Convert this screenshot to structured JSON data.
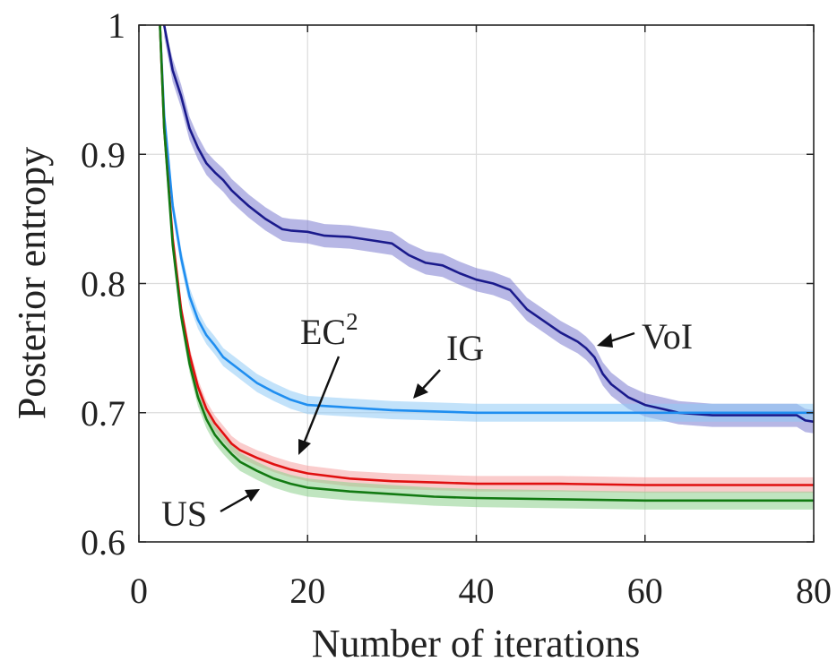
{
  "chart_data": {
    "type": "line",
    "title": "",
    "xlabel": "Number of iterations",
    "ylabel": "Posterior entropy",
    "xlim": [
      0,
      80
    ],
    "ylim": [
      0.6,
      1.0
    ],
    "xticks": [
      0,
      20,
      40,
      60,
      80
    ],
    "xtick_labels": [
      "0",
      "20",
      "40",
      "60",
      "80"
    ],
    "yticks": [
      0.6,
      0.7,
      0.8,
      0.9,
      1.0
    ],
    "ytick_labels": [
      "0.6",
      "0.7",
      "0.8",
      "0.9",
      "1"
    ],
    "grid": true,
    "series": [
      {
        "name": "VoI",
        "color": "#1a1a8c",
        "band_color": "#7b7bd0",
        "band_halfwidth": 0.009,
        "x": [
          3,
          4,
          5,
          6,
          7,
          8,
          9,
          10,
          11,
          12,
          13,
          14,
          15,
          16,
          17,
          18,
          20,
          22,
          25,
          28,
          30,
          32,
          34,
          36,
          38,
          40,
          42,
          44,
          46,
          48,
          50,
          52,
          53,
          54,
          55,
          56,
          58,
          60,
          62,
          64,
          66,
          68,
          70,
          72,
          74,
          76,
          78,
          79,
          80
        ],
        "y": [
          1.0,
          0.965,
          0.945,
          0.92,
          0.905,
          0.893,
          0.886,
          0.88,
          0.872,
          0.866,
          0.86,
          0.855,
          0.85,
          0.846,
          0.842,
          0.841,
          0.84,
          0.837,
          0.836,
          0.833,
          0.831,
          0.822,
          0.816,
          0.814,
          0.808,
          0.803,
          0.8,
          0.795,
          0.78,
          0.771,
          0.762,
          0.755,
          0.75,
          0.743,
          0.73,
          0.722,
          0.712,
          0.706,
          0.703,
          0.7,
          0.699,
          0.698,
          0.698,
          0.698,
          0.698,
          0.698,
          0.698,
          0.694,
          0.693
        ]
      },
      {
        "name": "IG",
        "color": "#1f8ef0",
        "band_color": "#8fcaf6",
        "band_halfwidth": 0.007,
        "x": [
          2.5,
          3,
          4,
          5,
          6,
          7,
          8,
          9,
          10,
          12,
          14,
          16,
          18,
          20,
          25,
          30,
          35,
          40,
          50,
          60,
          70,
          80
        ],
        "y": [
          1.0,
          0.93,
          0.86,
          0.82,
          0.79,
          0.772,
          0.76,
          0.752,
          0.743,
          0.733,
          0.723,
          0.716,
          0.71,
          0.706,
          0.704,
          0.702,
          0.701,
          0.7,
          0.7,
          0.7,
          0.7,
          0.7
        ]
      },
      {
        "name": "EC²",
        "color": "#e01010",
        "band_color": "#f5a3a3",
        "band_halfwidth": 0.006,
        "x": [
          2.5,
          3,
          4,
          5,
          6,
          7,
          8,
          9,
          10,
          11,
          12,
          14,
          16,
          18,
          20,
          25,
          30,
          35,
          40,
          50,
          60,
          70,
          80
        ],
        "y": [
          1.0,
          0.92,
          0.835,
          0.78,
          0.745,
          0.72,
          0.703,
          0.692,
          0.684,
          0.676,
          0.671,
          0.665,
          0.66,
          0.656,
          0.653,
          0.649,
          0.647,
          0.646,
          0.645,
          0.645,
          0.644,
          0.644,
          0.644
        ]
      },
      {
        "name": "US",
        "color": "#127a12",
        "band_color": "#8dd08d",
        "band_halfwidth": 0.007,
        "x": [
          2.5,
          3,
          4,
          5,
          6,
          7,
          8,
          9,
          10,
          11,
          12,
          14,
          16,
          18,
          20,
          25,
          30,
          35,
          40,
          50,
          60,
          70,
          80
        ],
        "y": [
          1.0,
          0.92,
          0.83,
          0.775,
          0.738,
          0.712,
          0.695,
          0.683,
          0.675,
          0.668,
          0.662,
          0.655,
          0.649,
          0.645,
          0.642,
          0.639,
          0.637,
          0.635,
          0.634,
          0.633,
          0.632,
          0.632,
          0.632
        ]
      }
    ],
    "annotations": [
      {
        "text": "VoI",
        "points_to": [
          53.5,
          0.748
        ]
      },
      {
        "text": "IG",
        "points_to": [
          32,
          0.712
        ]
      },
      {
        "text": "EC",
        "sup": "2",
        "points_to": [
          19,
          0.67
        ]
      },
      {
        "text": "US",
        "points_to": [
          15,
          0.64
        ]
      }
    ]
  }
}
